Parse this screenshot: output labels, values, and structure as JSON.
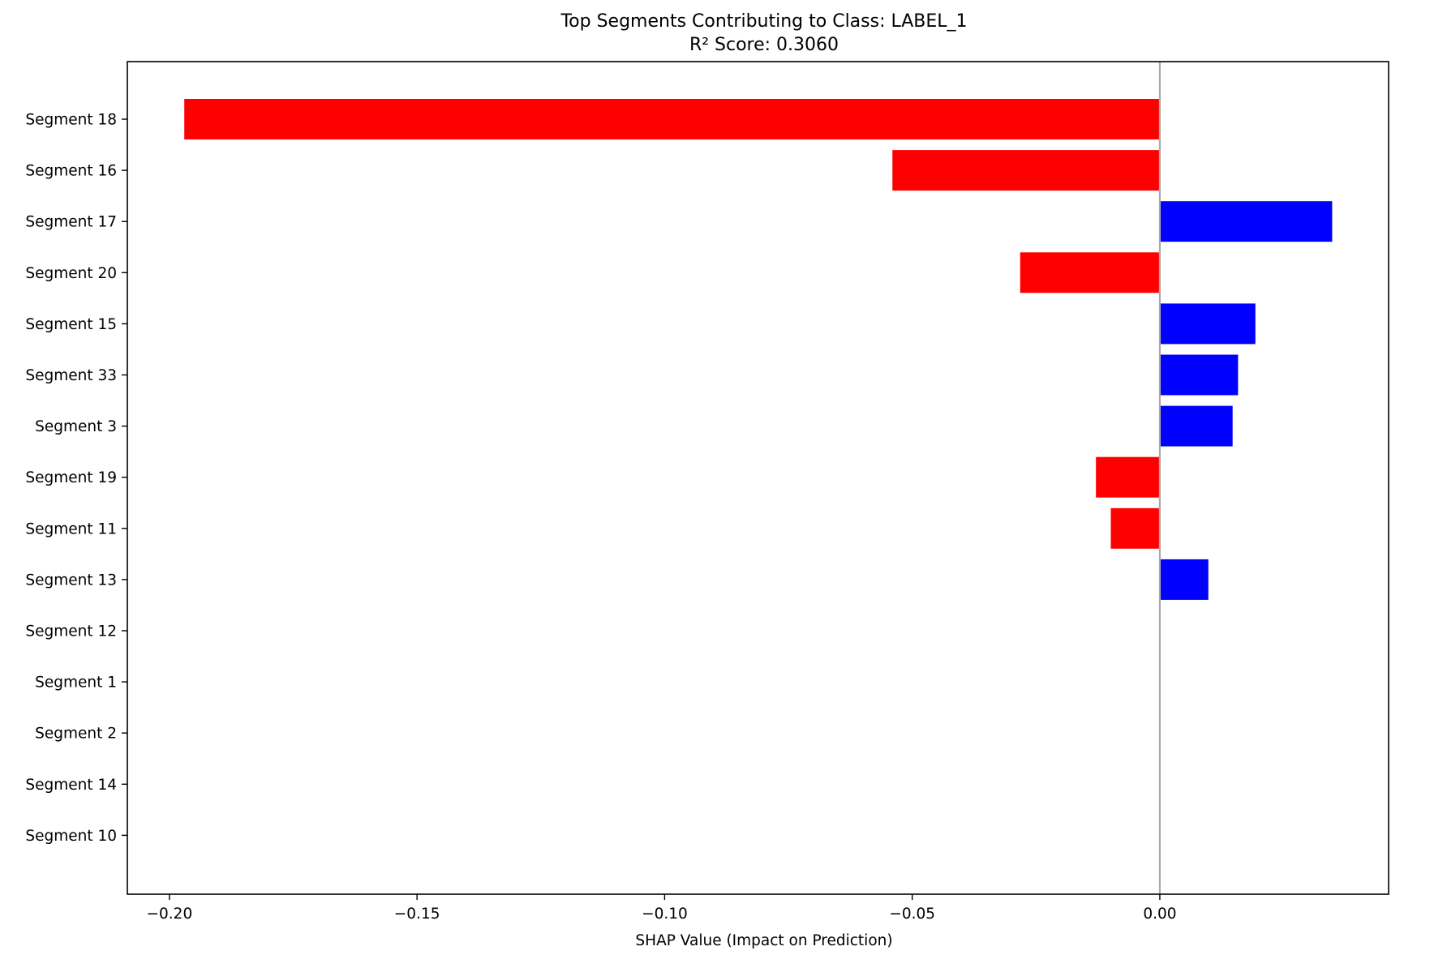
{
  "chart_data": {
    "type": "bar",
    "orientation": "horizontal",
    "title": "Top Segments Contributing to Class: LABEL_1",
    "subtitle": "R² Score: 0.3060",
    "xlabel": "SHAP Value (Impact on Prediction)",
    "ylabel": "",
    "categories": [
      "Segment 18",
      "Segment 16",
      "Segment 17",
      "Segment 20",
      "Segment 15",
      "Segment 33",
      "Segment 3",
      "Segment 19",
      "Segment 11",
      "Segment 13",
      "Segment 12",
      "Segment 1",
      "Segment 2",
      "Segment 14",
      "Segment 10"
    ],
    "values": [
      -0.197,
      -0.054,
      0.0348,
      -0.0282,
      0.0193,
      0.0158,
      0.0147,
      -0.0129,
      -0.0099,
      0.0098,
      0.0,
      0.0,
      0.0,
      0.0,
      0.0
    ],
    "xlim": [
      -0.2085,
      0.0462
    ],
    "xticks": [
      -0.2,
      -0.15,
      -0.1,
      -0.05,
      0.0
    ],
    "xtick_labels": [
      "−0.20",
      "−0.15",
      "−0.10",
      "−0.05",
      "0.00"
    ],
    "zero_line": true,
    "grid": false,
    "legend": "none",
    "colors": {
      "positive": "#0000ff",
      "negative": "#ff0000",
      "zero_line": "#aaaaaa",
      "axes": "#000000"
    }
  }
}
